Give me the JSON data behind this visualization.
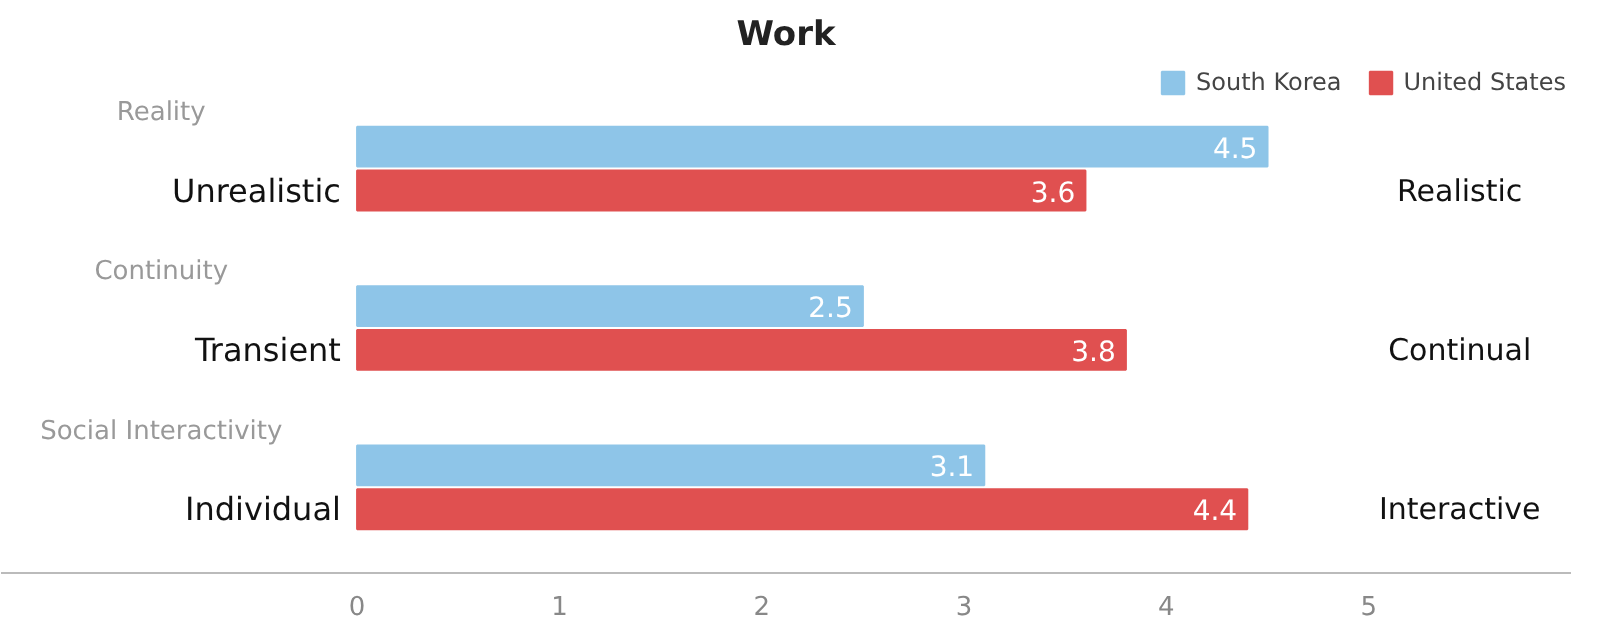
{
  "chart_data": {
    "type": "bar",
    "orientation": "horizontal",
    "title": "Work",
    "categories": [
      "Unrealistic",
      "Transient",
      "Individual"
    ],
    "series": [
      {
        "name": "South Korea",
        "color": "#8ec5e8",
        "values": [
          4.5,
          2.5,
          3.1
        ]
      },
      {
        "name": "United States",
        "color": "#e05050",
        "values": [
          3.6,
          3.8,
          4.4
        ]
      }
    ],
    "annotations": [
      "Reality",
      "Continuity",
      "Social Interactivity",
      "Realistic",
      "Continual",
      "Interactive"
    ],
    "xlim": [
      0,
      6
    ],
    "xticks": [
      0,
      1,
      2,
      3,
      4,
      5
    ],
    "data_labels": true,
    "legend": "top right",
    "grid": false
  }
}
